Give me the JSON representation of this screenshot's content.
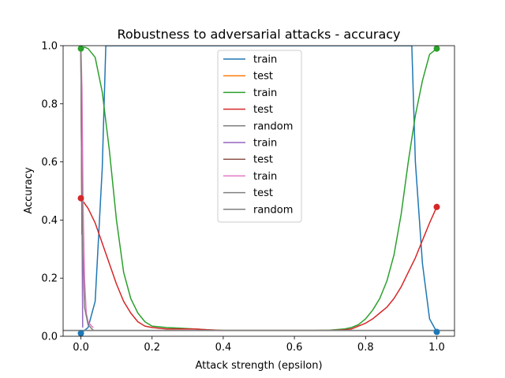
{
  "chart_data": {
    "type": "line",
    "title": "Robustness to adversarial attacks - accuracy",
    "xlabel": "Attack strength (epsilon)",
    "ylabel": "Accuracy",
    "xlim": [
      -0.05,
      1.05
    ],
    "ylim": [
      0,
      1
    ],
    "x_ticks": [
      0,
      0.2,
      0.4,
      0.6,
      0.8,
      1
    ],
    "x_tick_labels": [
      "0.0",
      "0.2",
      "0.4",
      "0.6",
      "0.8",
      "1.0"
    ],
    "y_ticks": [
      0,
      0.2,
      0.4,
      0.6,
      0.8,
      1
    ],
    "y_tick_labels": [
      "0.0",
      "0.2",
      "0.4",
      "0.6",
      "0.8",
      "1.0"
    ],
    "grid": false,
    "legend_position": "top-center",
    "series": [
      {
        "name": "train",
        "color": "#1f77b4",
        "marker": true,
        "x": [
          0,
          0.02,
          0.04,
          0.06,
          0.07,
          0.93,
          0.94,
          0.96,
          0.98,
          1.0
        ],
        "y": [
          0.01,
          0.03,
          0.12,
          0.58,
          1.0,
          1.0,
          0.6,
          0.25,
          0.06,
          0.015
        ]
      },
      {
        "name": "test",
        "color": "#ff7f0e",
        "marker": false,
        "x": [
          0,
          0.0025
        ],
        "y": [
          0.99,
          0.45
        ]
      },
      {
        "name": "train",
        "color": "#2ca02c",
        "marker": true,
        "x": [
          0,
          0.01,
          0.02,
          0.04,
          0.06,
          0.08,
          0.1,
          0.12,
          0.14,
          0.16,
          0.18,
          0.2,
          0.24,
          0.28,
          0.32,
          0.36,
          0.4,
          0.45,
          0.5,
          0.55,
          0.6,
          0.65,
          0.7,
          0.74,
          0.76,
          0.78,
          0.8,
          0.82,
          0.84,
          0.86,
          0.88,
          0.9,
          0.92,
          0.94,
          0.96,
          0.98,
          1.0
        ],
        "y": [
          0.99,
          0.995,
          0.99,
          0.96,
          0.84,
          0.64,
          0.4,
          0.22,
          0.13,
          0.08,
          0.05,
          0.035,
          0.03,
          0.028,
          0.025,
          0.022,
          0.02,
          0.02,
          0.02,
          0.02,
          0.02,
          0.02,
          0.021,
          0.025,
          0.03,
          0.04,
          0.06,
          0.09,
          0.13,
          0.19,
          0.28,
          0.42,
          0.6,
          0.76,
          0.88,
          0.97,
          0.99
        ]
      },
      {
        "name": "test",
        "color": "#d62728",
        "marker": true,
        "x": [
          0,
          0.02,
          0.04,
          0.06,
          0.08,
          0.1,
          0.12,
          0.14,
          0.16,
          0.18,
          0.2,
          0.24,
          0.28,
          0.32,
          0.36,
          0.4,
          0.45,
          0.5,
          0.55,
          0.6,
          0.65,
          0.7,
          0.74,
          0.76,
          0.78,
          0.8,
          0.82,
          0.84,
          0.86,
          0.88,
          0.9,
          0.92,
          0.94,
          0.96,
          0.98,
          1.0
        ],
        "y": [
          0.475,
          0.44,
          0.39,
          0.32,
          0.25,
          0.18,
          0.12,
          0.08,
          0.05,
          0.035,
          0.03,
          0.025,
          0.025,
          0.025,
          0.022,
          0.02,
          0.02,
          0.02,
          0.02,
          0.02,
          0.02,
          0.02,
          0.022,
          0.025,
          0.035,
          0.045,
          0.06,
          0.08,
          0.1,
          0.13,
          0.17,
          0.22,
          0.27,
          0.33,
          0.39,
          0.445
        ]
      },
      {
        "name": "random",
        "color": "#7f7f7f",
        "marker": false,
        "x": [
          -0.05,
          1.05
        ],
        "y": [
          0.02,
          0.02
        ]
      },
      {
        "name": "train",
        "color": "#9467bd",
        "marker": false,
        "x": [
          0,
          0.002,
          0.005
        ],
        "y": [
          0.99,
          0.6,
          0.03
        ]
      },
      {
        "name": "test",
        "color": "#8c564b",
        "marker": false,
        "x": [
          0,
          0.003
        ],
        "y": [
          0.99,
          0.35
        ]
      },
      {
        "name": "train",
        "color": "#e377c2",
        "marker": false,
        "x": [
          0,
          0.003,
          0.006,
          0.01,
          0.015,
          0.02,
          0.03,
          0.035
        ],
        "y": [
          1.0,
          0.85,
          0.45,
          0.2,
          0.08,
          0.05,
          0.035,
          0.03
        ]
      },
      {
        "name": "test",
        "color": "#7f7f7f",
        "marker": false,
        "x": [
          0,
          0.002,
          0.005,
          0.01,
          0.02,
          0.035
        ],
        "y": [
          1.0,
          0.6,
          0.3,
          0.1,
          0.04,
          0.02
        ]
      },
      {
        "name": "random",
        "color": "#7f7f7f",
        "marker": false,
        "x": [
          -0.05,
          1.05
        ],
        "y": [
          0.02,
          0.02
        ]
      }
    ]
  }
}
